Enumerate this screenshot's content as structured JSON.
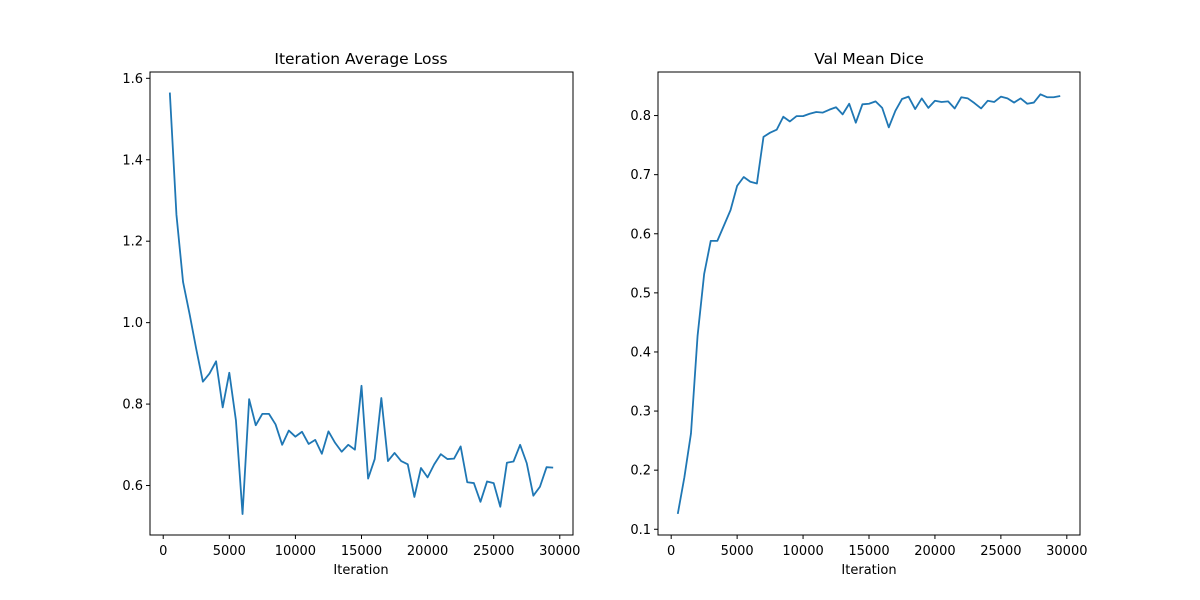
{
  "colors": {
    "line": "#1f77b4",
    "axes": "#000000",
    "background": "#ffffff"
  },
  "chart_data": [
    {
      "type": "line",
      "title": "Iteration Average Loss",
      "xlabel": "Iteration",
      "ylabel": "",
      "xlim": [
        -1000,
        31000
      ],
      "ylim": [
        0.4785,
        1.6155
      ],
      "xticks": [
        0,
        5000,
        10000,
        15000,
        20000,
        25000,
        30000
      ],
      "xtick_labels": [
        "0",
        "5000",
        "10000",
        "15000",
        "20000",
        "25000",
        "30000"
      ],
      "yticks": [
        0.6,
        0.8,
        1.0,
        1.2,
        1.4,
        1.6
      ],
      "ytick_labels": [
        "0.6",
        "0.8",
        "1.0",
        "1.2",
        "1.4",
        "1.6"
      ],
      "grid": false,
      "series": [
        {
          "name": "loss",
          "x": [
            500,
            1000,
            1500,
            2000,
            2500,
            3000,
            3500,
            4000,
            4500,
            5000,
            5500,
            6000,
            6500,
            7000,
            7500,
            8000,
            8500,
            9000,
            9500,
            10000,
            10500,
            11000,
            11500,
            12000,
            12500,
            13000,
            13500,
            14000,
            14500,
            15000,
            15500,
            16000,
            16500,
            17000,
            17500,
            18000,
            18500,
            19000,
            19500,
            20000,
            20500,
            21000,
            21500,
            22000,
            22500,
            23000,
            23500,
            24000,
            24500,
            25000,
            25500,
            26000,
            26500,
            27000,
            27500,
            28000,
            28500,
            29000,
            29500
          ],
          "values": [
            1.565,
            1.265,
            1.1,
            1.02,
            0.935,
            0.855,
            0.875,
            0.905,
            0.792,
            0.877,
            0.76,
            0.53,
            0.812,
            0.748,
            0.776,
            0.776,
            0.75,
            0.7,
            0.735,
            0.72,
            0.732,
            0.702,
            0.712,
            0.678,
            0.733,
            0.705,
            0.683,
            0.7,
            0.688,
            0.845,
            0.617,
            0.665,
            0.815,
            0.66,
            0.68,
            0.66,
            0.652,
            0.572,
            0.643,
            0.62,
            0.652,
            0.677,
            0.665,
            0.666,
            0.696,
            0.608,
            0.606,
            0.56,
            0.61,
            0.606,
            0.548,
            0.656,
            0.659,
            0.7,
            0.655,
            0.575,
            0.597,
            0.645,
            0.644
          ]
        }
      ]
    },
    {
      "type": "line",
      "title": "Val Mean Dice",
      "xlabel": "Iteration",
      "ylabel": "",
      "xlim": [
        -1000,
        31000
      ],
      "ylim": [
        0.0903,
        0.8737
      ],
      "xticks": [
        0,
        5000,
        10000,
        15000,
        20000,
        25000,
        30000
      ],
      "xtick_labels": [
        "0",
        "5000",
        "10000",
        "15000",
        "20000",
        "25000",
        "30000"
      ],
      "yticks": [
        0.1,
        0.2,
        0.3,
        0.4,
        0.5,
        0.6,
        0.7,
        0.8
      ],
      "ytick_labels": [
        "0.1",
        "0.2",
        "0.3",
        "0.4",
        "0.5",
        "0.6",
        "0.7",
        "0.8"
      ],
      "grid": false,
      "series": [
        {
          "name": "dice",
          "x": [
            500,
            1000,
            1500,
            2000,
            2500,
            3000,
            3500,
            4000,
            4500,
            5000,
            5500,
            6000,
            6500,
            7000,
            7500,
            8000,
            8500,
            9000,
            9500,
            10000,
            10500,
            11000,
            11500,
            12000,
            12500,
            13000,
            13500,
            14000,
            14500,
            15000,
            15500,
            16000,
            16500,
            17000,
            17500,
            18000,
            18500,
            19000,
            19500,
            20000,
            20500,
            21000,
            21500,
            22000,
            22500,
            23000,
            23500,
            24000,
            24500,
            25000,
            25500,
            26000,
            26500,
            27000,
            27500,
            28000,
            28500,
            29000,
            29500
          ],
          "values": [
            0.126,
            0.188,
            0.262,
            0.427,
            0.532,
            0.588,
            0.588,
            0.614,
            0.64,
            0.681,
            0.696,
            0.688,
            0.685,
            0.764,
            0.771,
            0.776,
            0.798,
            0.79,
            0.799,
            0.799,
            0.803,
            0.806,
            0.805,
            0.81,
            0.814,
            0.802,
            0.82,
            0.788,
            0.819,
            0.82,
            0.824,
            0.813,
            0.78,
            0.808,
            0.828,
            0.832,
            0.811,
            0.829,
            0.813,
            0.825,
            0.823,
            0.824,
            0.812,
            0.831,
            0.829,
            0.821,
            0.812,
            0.825,
            0.823,
            0.832,
            0.829,
            0.822,
            0.829,
            0.82,
            0.822,
            0.836,
            0.831,
            0.831,
            0.833
          ]
        }
      ]
    }
  ]
}
